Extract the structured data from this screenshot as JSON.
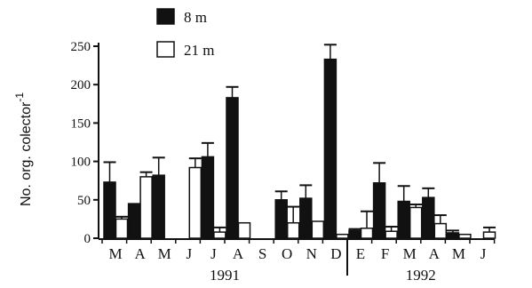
{
  "chart_data": {
    "type": "bar",
    "title": "",
    "xlabel": "",
    "ylabel": "No. org. colector",
    "ylabel_superscript": "-1",
    "ylim": [
      0,
      250
    ],
    "yticks": [
      "0",
      "50",
      "100",
      "150",
      "200",
      "250"
    ],
    "legend": {
      "placement": "top-left"
    },
    "colors": {
      "8 m": "#111111",
      "21 m": "#ffffff"
    },
    "months": [
      "M",
      "A",
      "M",
      "J",
      "J",
      "A",
      "S",
      "O",
      "N",
      "D",
      "E",
      "F",
      "M",
      "A",
      "M",
      "J"
    ],
    "years": [
      {
        "label": "1991",
        "months": [
          "M",
          "A",
          "M",
          "J",
          "J",
          "A",
          "S",
          "O",
          "N",
          "D"
        ]
      },
      {
        "label": "1992",
        "months": [
          "E",
          "F",
          "M",
          "A",
          "M",
          "J"
        ]
      }
    ],
    "series": [
      {
        "name": "8 m",
        "values": [
          73,
          45,
          82,
          0,
          106,
          183,
          0,
          50,
          52,
          233,
          10,
          72,
          48,
          53,
          7,
          0
        ],
        "errors": [
          26,
          0,
          23,
          0,
          18,
          14,
          0,
          11,
          17,
          19,
          2,
          26,
          20,
          12,
          3,
          0
        ]
      },
      {
        "name": "21 m",
        "values": [
          25,
          80,
          0,
          92,
          8,
          20,
          0,
          20,
          22,
          5,
          13,
          9,
          40,
          19,
          5,
          8
        ],
        "errors": [
          3,
          6,
          0,
          12,
          6,
          0,
          0,
          21,
          0,
          0,
          22,
          6,
          4,
          11,
          0,
          6
        ]
      }
    ]
  }
}
